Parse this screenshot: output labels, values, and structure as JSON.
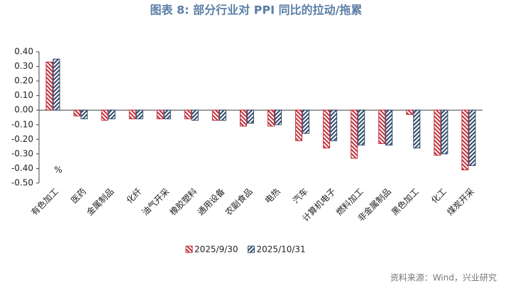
{
  "chart_data": {
    "type": "bar",
    "title": "图表 8:  部分行业对 PPI 同比的拉动/拖累",
    "annotation": "%",
    "source": "资料来源：Wind，兴业研究",
    "categories": [
      "有色加工",
      "医药",
      "金属制品",
      "化纤",
      "油气开采",
      "橡胶塑料",
      "通用设备",
      "农副食品",
      "电热",
      "汽车",
      "计算机电子",
      "燃料加工",
      "非金属制品",
      "黑色加工",
      "化工",
      "煤炭开采"
    ],
    "series": [
      {
        "name": "2025/9/30",
        "color": "#c0313d",
        "values": [
          0.33,
          -0.04,
          -0.07,
          -0.06,
          -0.06,
          -0.06,
          -0.07,
          -0.11,
          -0.11,
          -0.21,
          -0.26,
          -0.33,
          -0.23,
          -0.03,
          -0.31,
          -0.41
        ]
      },
      {
        "name": "2025/10/31",
        "color": "#2f4a6b",
        "values": [
          0.35,
          -0.06,
          -0.06,
          -0.06,
          -0.06,
          -0.07,
          -0.07,
          -0.09,
          -0.1,
          -0.16,
          -0.21,
          -0.24,
          -0.24,
          -0.26,
          -0.3,
          -0.38
        ]
      }
    ],
    "ylim": [
      -0.5,
      0.4
    ],
    "yticks": [
      {
        "value": 0.4,
        "label": "0.40"
      },
      {
        "value": 0.3,
        "label": "0.30"
      },
      {
        "value": 0.2,
        "label": "0.20"
      },
      {
        "value": 0.1,
        "label": "0.10"
      },
      {
        "value": 0,
        "label": "0.00"
      },
      {
        "value": -0.1,
        "label": "-0.10"
      },
      {
        "value": -0.2,
        "label": "-0.20"
      },
      {
        "value": -0.3,
        "label": "-0.30"
      },
      {
        "value": -0.4,
        "label": "-0.40"
      },
      {
        "value": -0.5,
        "label": "-0.50"
      }
    ],
    "grid": false
  }
}
